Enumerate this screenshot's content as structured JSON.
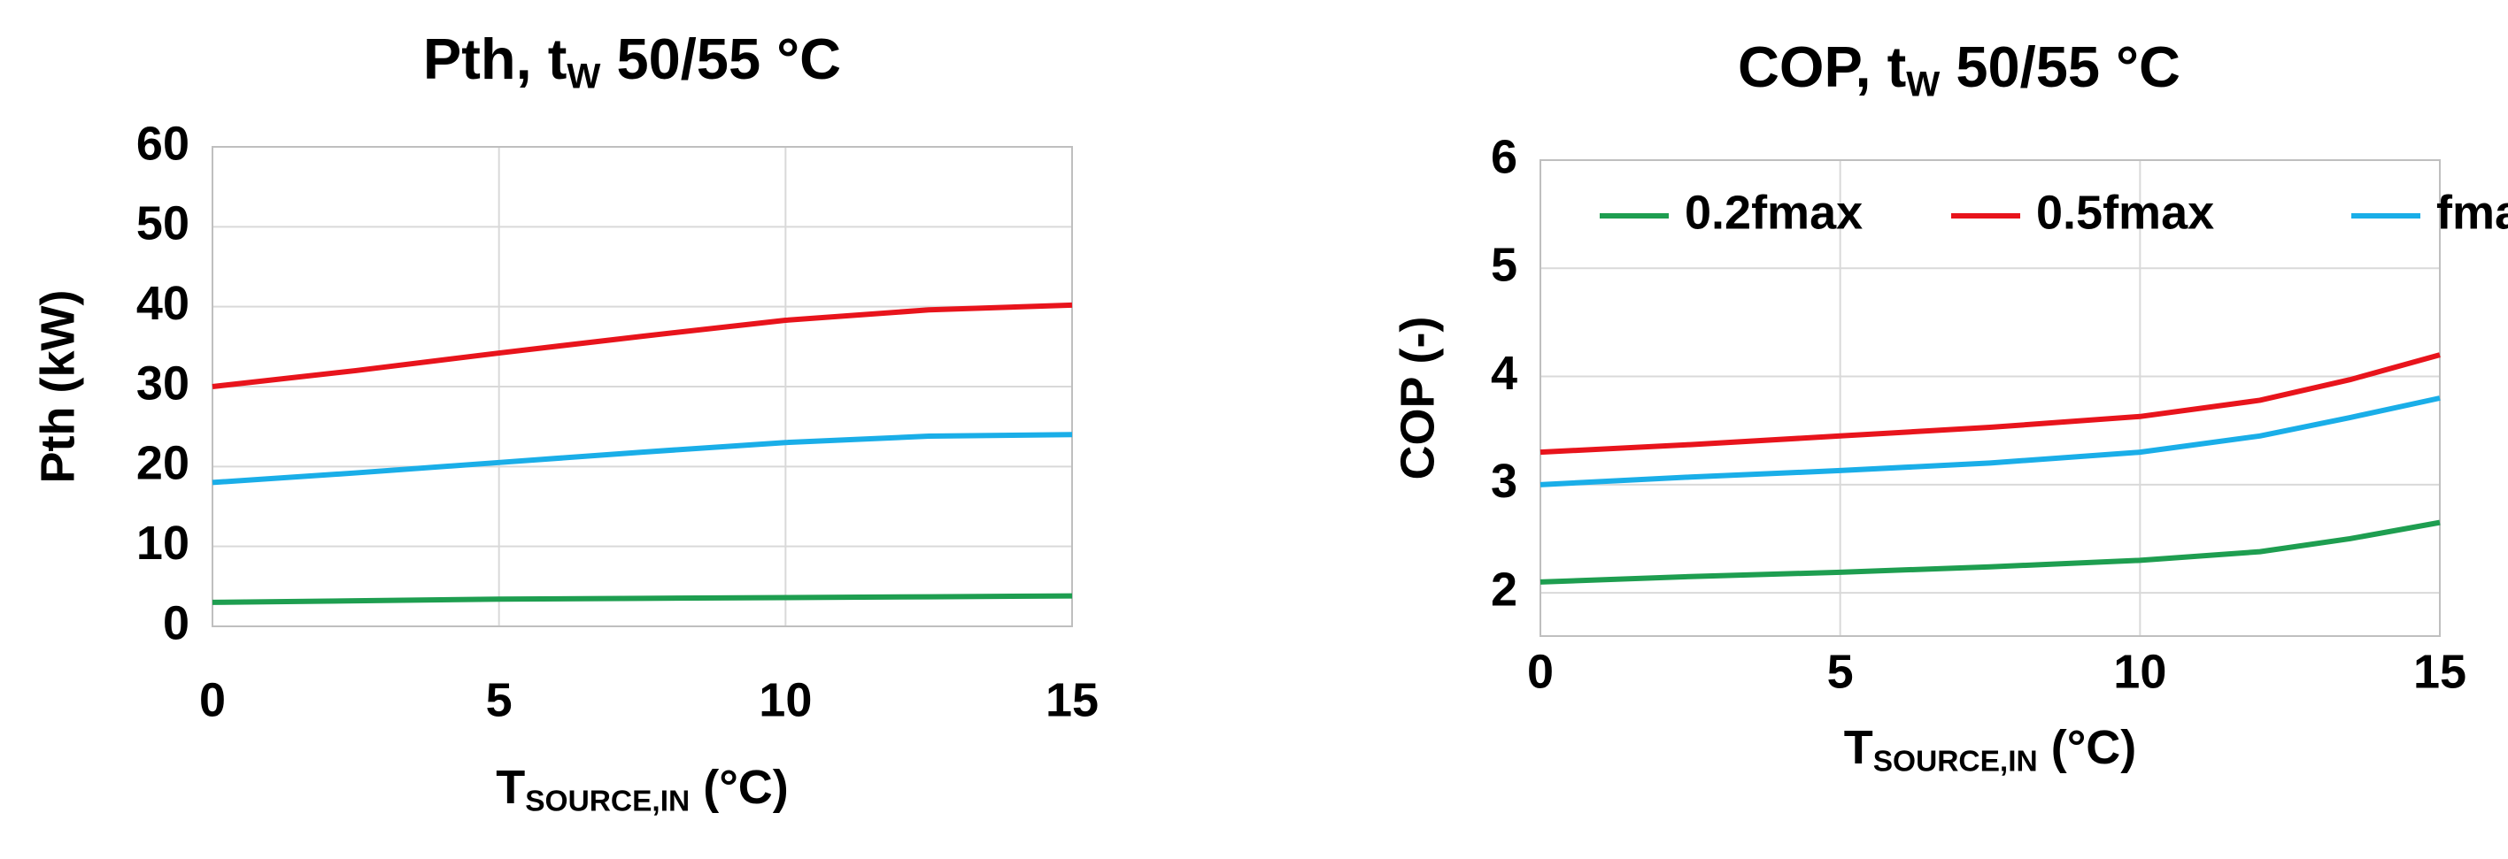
{
  "chart_data": [
    {
      "type": "line",
      "title": [
        "Pth, t",
        "W",
        " 50/55 °C"
      ],
      "x_label": [
        "T",
        "SOURCE,IN",
        " (°C)"
      ],
      "y_label": "Pth  (kW)",
      "x": [
        0,
        2.5,
        5,
        7.5,
        10,
        12.5,
        15
      ],
      "series": [
        {
          "color": "#e8141c",
          "values": [
            30,
            32,
            34.2,
            36.3,
            38.3,
            39.6,
            40.2
          ]
        },
        {
          "color": "#1aaee8",
          "values": [
            18,
            19.2,
            20.5,
            21.8,
            23,
            23.8,
            24
          ]
        },
        {
          "color": "#1e9e50",
          "values": [
            3,
            3.2,
            3.4,
            3.5,
            3.6,
            3.7,
            3.8
          ]
        }
      ],
      "xlim": [
        0,
        15
      ],
      "xticks": [
        0,
        5,
        10,
        15
      ],
      "ylim": [
        0,
        60
      ],
      "yticks": [
        0,
        10,
        20,
        30,
        40,
        50,
        60
      ],
      "grid": true
    },
    {
      "type": "line",
      "title": [
        "COP, t",
        "W",
        " 50/55 °C"
      ],
      "x_label": [
        "T",
        "SOURCE,IN",
        " (°C)"
      ],
      "y_label": "COP (-)",
      "x": [
        0,
        2.5,
        5,
        7.5,
        10,
        12,
        13.5,
        15
      ],
      "series": [
        {
          "name": "0.2fmax",
          "color": "#1e9e50",
          "values": [
            2.1,
            2.15,
            2.19,
            2.24,
            2.3,
            2.38,
            2.5,
            2.65
          ]
        },
        {
          "name": "0.5fmax",
          "color": "#e8141c",
          "values": [
            3.3,
            3.37,
            3.45,
            3.53,
            3.63,
            3.78,
            3.97,
            4.2
          ]
        },
        {
          "name": "fmax",
          "color": "#1aaee8",
          "values": [
            3.0,
            3.07,
            3.13,
            3.2,
            3.3,
            3.45,
            3.62,
            3.8
          ]
        }
      ],
      "xlim": [
        0,
        15
      ],
      "xticks": [
        0,
        5,
        10,
        15
      ],
      "ylim": [
        1.6,
        6
      ],
      "yticks": [
        2,
        3,
        4,
        5,
        6
      ],
      "grid": true,
      "legend": "top"
    }
  ]
}
